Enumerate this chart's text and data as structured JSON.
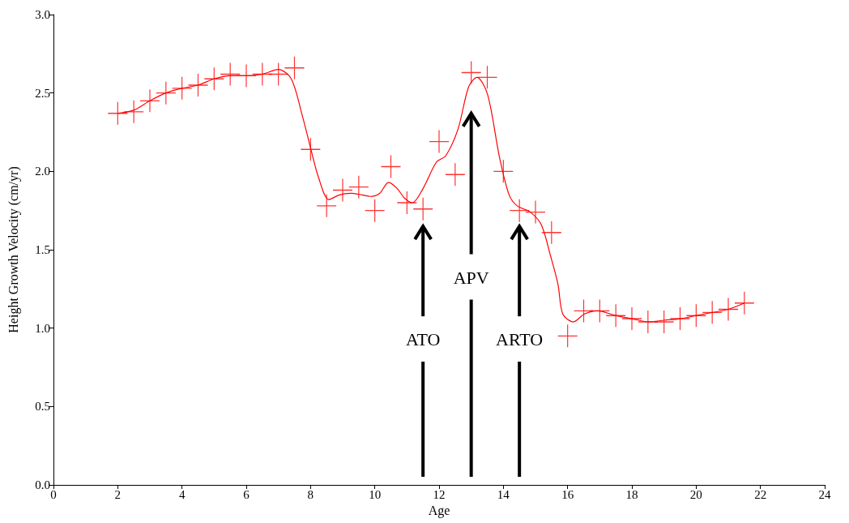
{
  "chart_data": {
    "type": "scatter",
    "xlabel": "Age",
    "ylabel": "Height Growth Velocity (cm/yr)",
    "xlim": [
      0,
      24
    ],
    "xticks": [
      0,
      2,
      4,
      6,
      8,
      10,
      12,
      14,
      16,
      18,
      20,
      22,
      24
    ],
    "ylim": [
      0,
      3
    ],
    "yticks": [
      {
        "value": 0,
        "label": "0.0"
      },
      {
        "value": 0.5,
        "label": "0.5"
      },
      {
        "value": 1,
        "label": "1.0"
      },
      {
        "value": 1.5,
        "label": "1.5"
      },
      {
        "value": 2,
        "label": "2.0"
      },
      {
        "value": 2.5,
        "label": "2.5"
      },
      {
        "value": 3,
        "label": "3.0"
      }
    ],
    "grid": false,
    "series": [
      {
        "marker": "cross",
        "color": "#ff0000",
        "x": [
          2,
          2.5,
          3,
          3.5,
          4,
          4.5,
          5,
          5.5,
          6,
          6.5,
          7,
          7.5,
          8,
          8.5,
          9,
          9.5,
          10,
          10.5,
          11,
          11.5,
          12,
          12.5,
          13,
          13.5,
          14,
          14.5,
          15,
          15.5,
          16,
          16.5,
          17,
          17.5,
          18,
          18.5,
          19,
          19.5,
          20,
          20.5,
          21,
          21.5
        ],
        "values": [
          2.37,
          2.38,
          2.45,
          2.5,
          2.53,
          2.55,
          2.59,
          2.62,
          2.61,
          2.62,
          2.62,
          2.66,
          2.14,
          1.78,
          1.88,
          1.9,
          1.75,
          2.03,
          1.8,
          1.76,
          2.19,
          1.98,
          2.63,
          2.6,
          2,
          1.75,
          1.74,
          1.61,
          0.95,
          1.11,
          1.11,
          1.08,
          1.06,
          1.04,
          1.04,
          1.06,
          1.08,
          1.1,
          1.12,
          1.16
        ]
      },
      {
        "type": "line",
        "marker": "none",
        "line_style": "solid",
        "color": "#ff0000",
        "x": [
          2,
          2.5,
          3,
          3.5,
          4,
          4.5,
          5,
          5.5,
          6,
          6.5,
          7,
          7.4,
          7.75,
          8,
          8.25,
          8.57,
          8.9,
          9.25,
          9.6,
          9.86,
          10.15,
          10.43,
          10.7,
          10.92,
          11.17,
          11.5,
          11.92,
          12.21,
          12.59,
          12.92,
          13.18,
          13.51,
          13.88,
          14.18,
          14.43,
          14.84,
          15.18,
          15.47,
          15.7,
          15.85,
          16.18,
          16.52,
          16.93,
          17.5,
          18,
          18.5,
          19,
          19.5,
          20,
          20.5,
          21,
          21.5
        ],
        "values": [
          2.37,
          2.39,
          2.45,
          2.5,
          2.53,
          2.55,
          2.59,
          2.61,
          2.61,
          2.62,
          2.65,
          2.59,
          2.35,
          2.15,
          1.96,
          1.82,
          1.85,
          1.86,
          1.85,
          1.84,
          1.86,
          1.93,
          1.89,
          1.83,
          1.8,
          1.89,
          2.06,
          2.1,
          2.27,
          2.54,
          2.6,
          2.49,
          2.09,
          1.85,
          1.78,
          1.74,
          1.66,
          1.46,
          1.28,
          1.09,
          1.04,
          1.09,
          1.11,
          1.08,
          1.06,
          1.04,
          1.05,
          1.06,
          1.08,
          1.1,
          1.12,
          1.16
        ]
      }
    ],
    "annotations": [
      "ATO",
      "APV",
      "ARTO"
    ]
  }
}
